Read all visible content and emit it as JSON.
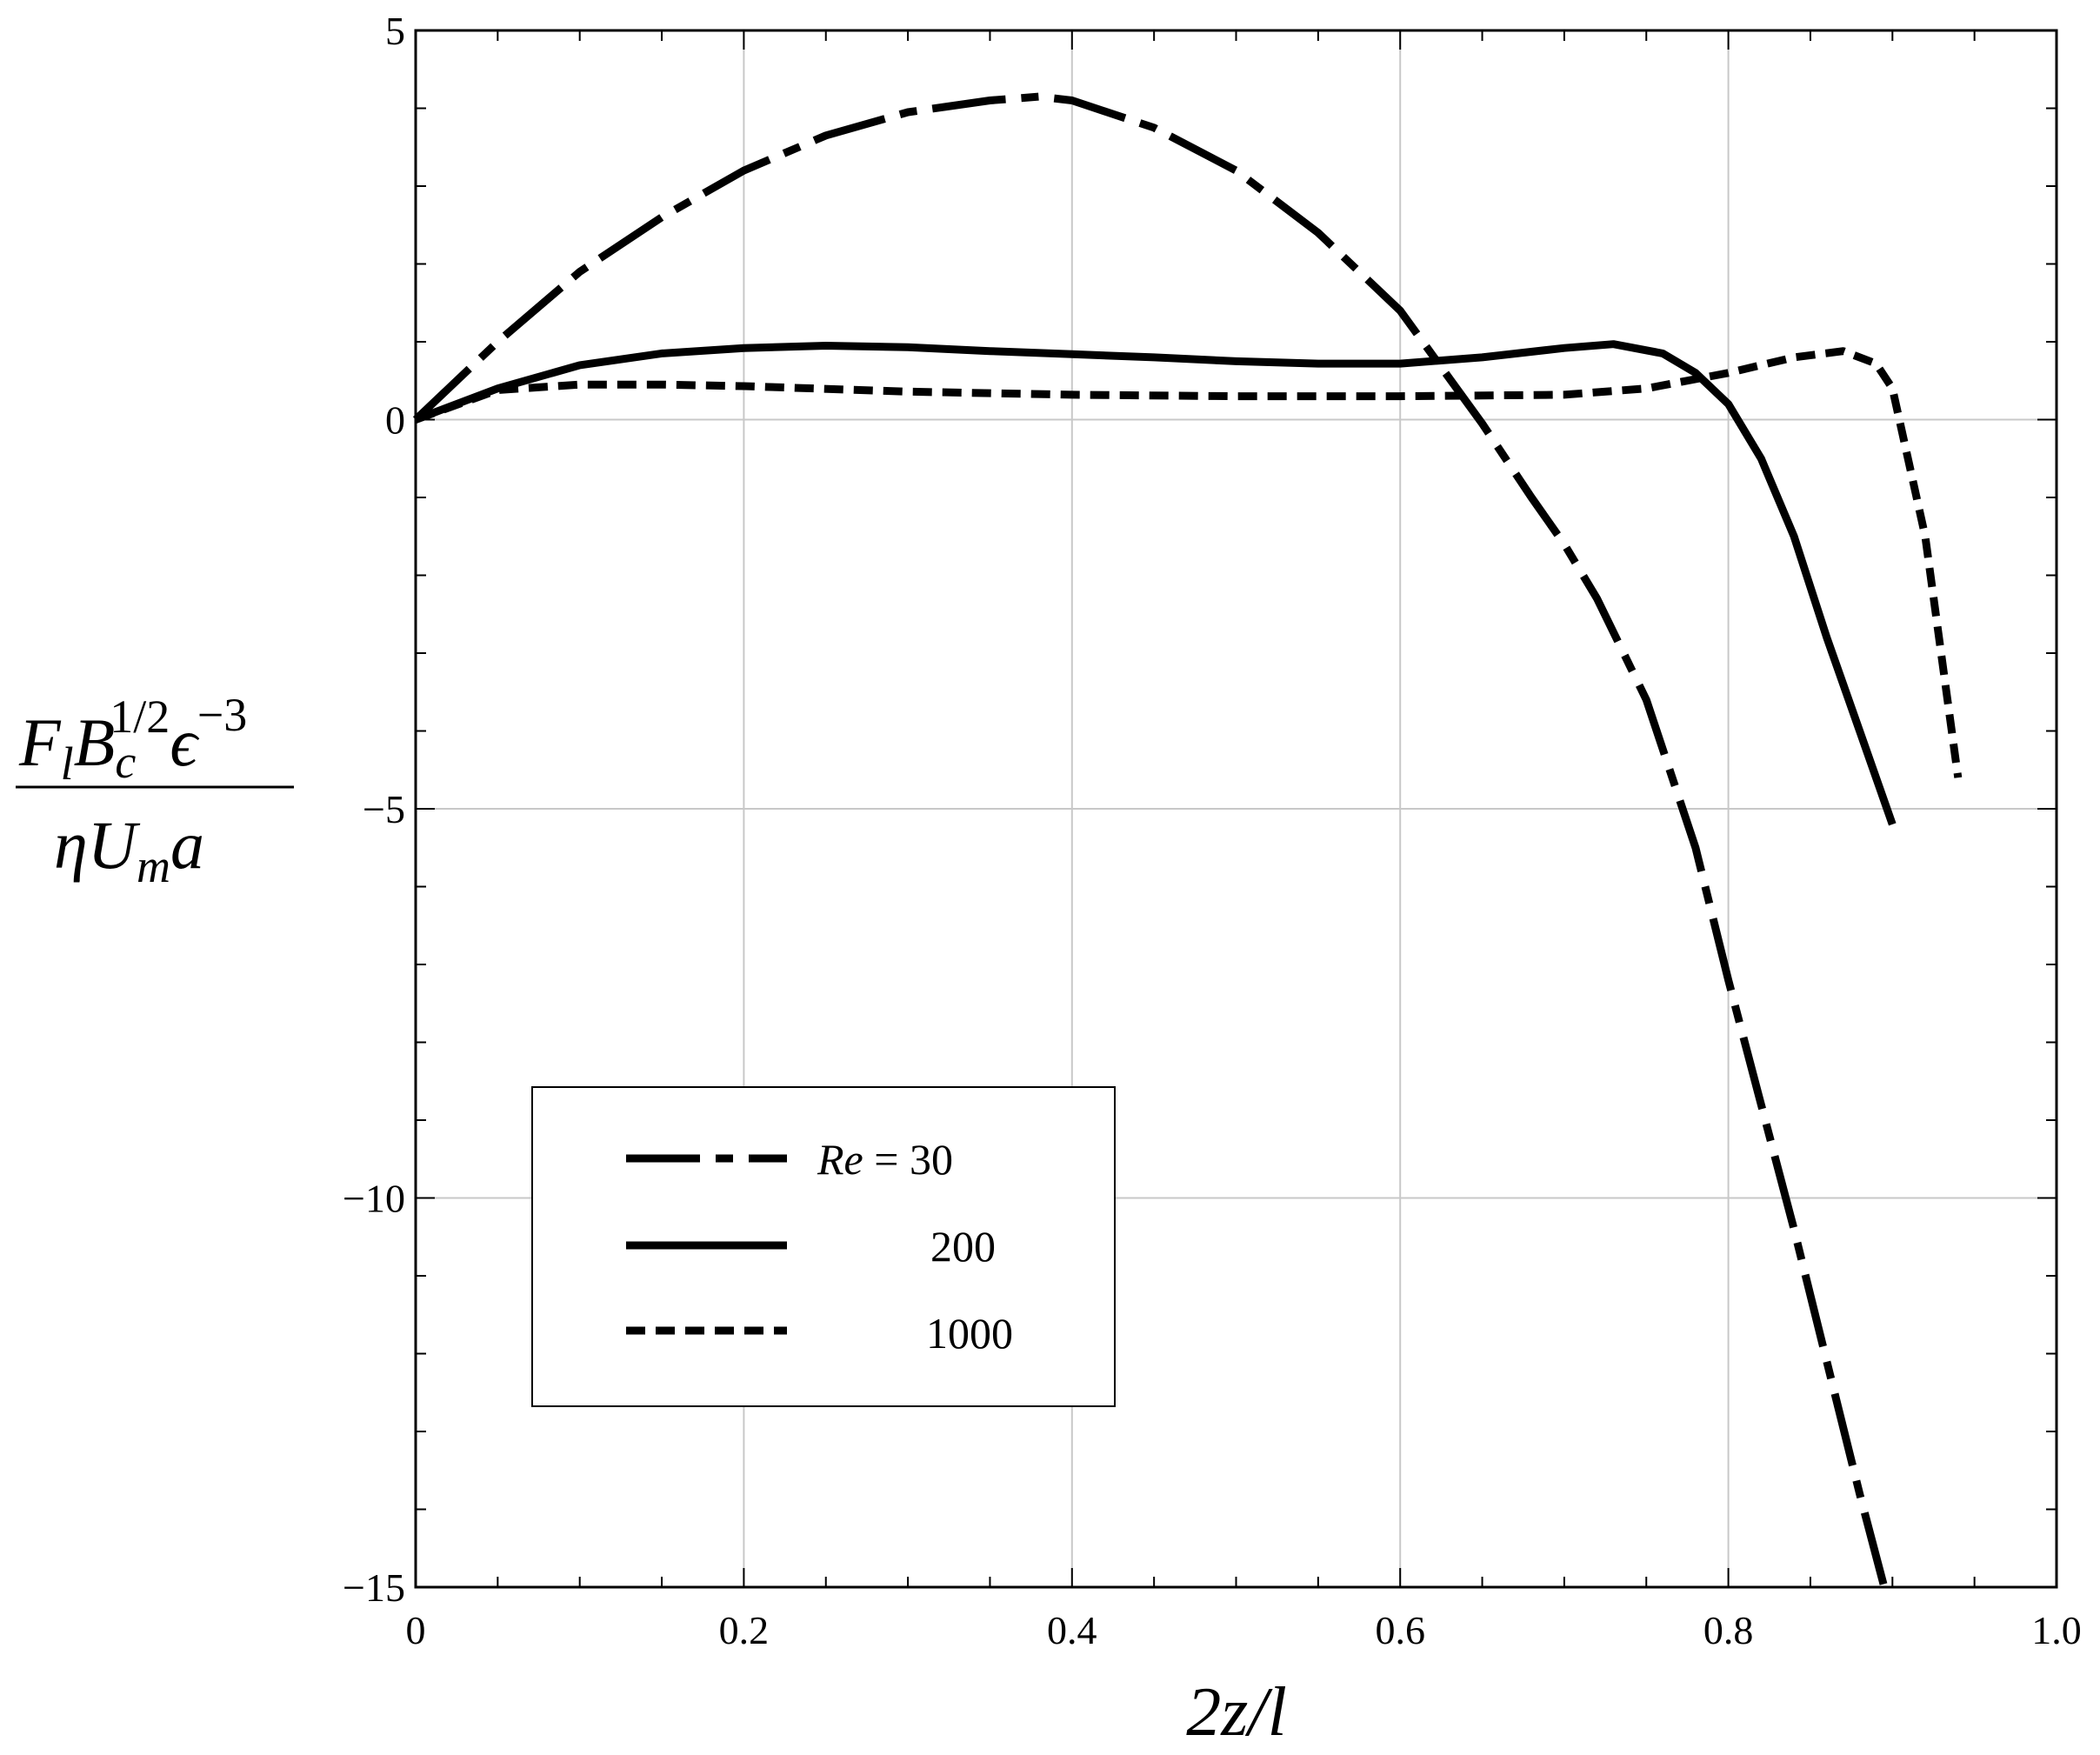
{
  "chart_data": {
    "type": "line",
    "xlabel": "2z/l",
    "ylabel": {
      "numerator": {
        "F": "F",
        "F_sub": "l",
        "B": "B",
        "B_sub": "c",
        "B_sup": "1/2",
        "eps": "ϵ",
        "eps_sup": "−3"
      },
      "denominator": {
        "eta": "η",
        "U": "U",
        "U_sub": "m",
        "a": "a"
      }
    },
    "xlim": [
      0,
      1.0
    ],
    "ylim": [
      -15,
      5
    ],
    "x_ticks": [
      0,
      0.2,
      0.4,
      0.6,
      0.8,
      1.0
    ],
    "x_tick_labels": [
      "0",
      "0.2",
      "0.4",
      "0.6",
      "0.8",
      "1.0"
    ],
    "y_ticks": [
      5,
      0,
      -5,
      -10,
      -15
    ],
    "y_tick_labels": [
      "5",
      "0",
      "−5",
      "−10",
      "−15"
    ],
    "grid": true,
    "legend": {
      "placement": "lower-left",
      "prefix": "Re",
      "equals": " = ",
      "entries": [
        "30",
        "200",
        "1000"
      ]
    },
    "series": [
      {
        "name": "30",
        "style": "dash-dot",
        "x": [
          0,
          0.05,
          0.1,
          0.15,
          0.2,
          0.25,
          0.3,
          0.35,
          0.38,
          0.4,
          0.45,
          0.5,
          0.55,
          0.6,
          0.65,
          0.68,
          0.7,
          0.72,
          0.75,
          0.78,
          0.8,
          0.82,
          0.84,
          0.86,
          0.88,
          0.895
        ],
        "y": [
          0,
          1.0,
          1.9,
          2.6,
          3.2,
          3.65,
          3.95,
          4.1,
          4.15,
          4.1,
          3.75,
          3.2,
          2.4,
          1.4,
          -0.05,
          -1.0,
          -1.6,
          -2.3,
          -3.6,
          -5.5,
          -7.2,
          -8.8,
          -10.4,
          -12.1,
          -13.8,
          -15.0
        ]
      },
      {
        "name": "200",
        "style": "solid",
        "x": [
          0,
          0.05,
          0.1,
          0.15,
          0.2,
          0.25,
          0.3,
          0.35,
          0.4,
          0.45,
          0.5,
          0.55,
          0.6,
          0.65,
          0.7,
          0.73,
          0.76,
          0.78,
          0.8,
          0.82,
          0.84,
          0.86,
          0.88,
          0.9
        ],
        "y": [
          0,
          0.4,
          0.7,
          0.85,
          0.92,
          0.95,
          0.93,
          0.88,
          0.84,
          0.8,
          0.75,
          0.72,
          0.72,
          0.8,
          0.92,
          0.97,
          0.85,
          0.6,
          0.2,
          -0.5,
          -1.5,
          -2.8,
          -4.0,
          -5.2
        ]
      },
      {
        "name": "1000",
        "style": "dashed",
        "x": [
          0,
          0.05,
          0.1,
          0.15,
          0.2,
          0.3,
          0.4,
          0.5,
          0.6,
          0.7,
          0.75,
          0.8,
          0.84,
          0.87,
          0.89,
          0.9,
          0.92,
          0.94
        ],
        "y": [
          0,
          0.38,
          0.45,
          0.45,
          0.43,
          0.36,
          0.32,
          0.3,
          0.3,
          0.32,
          0.4,
          0.6,
          0.8,
          0.88,
          0.72,
          0.4,
          -1.5,
          -4.6
        ]
      }
    ]
  }
}
